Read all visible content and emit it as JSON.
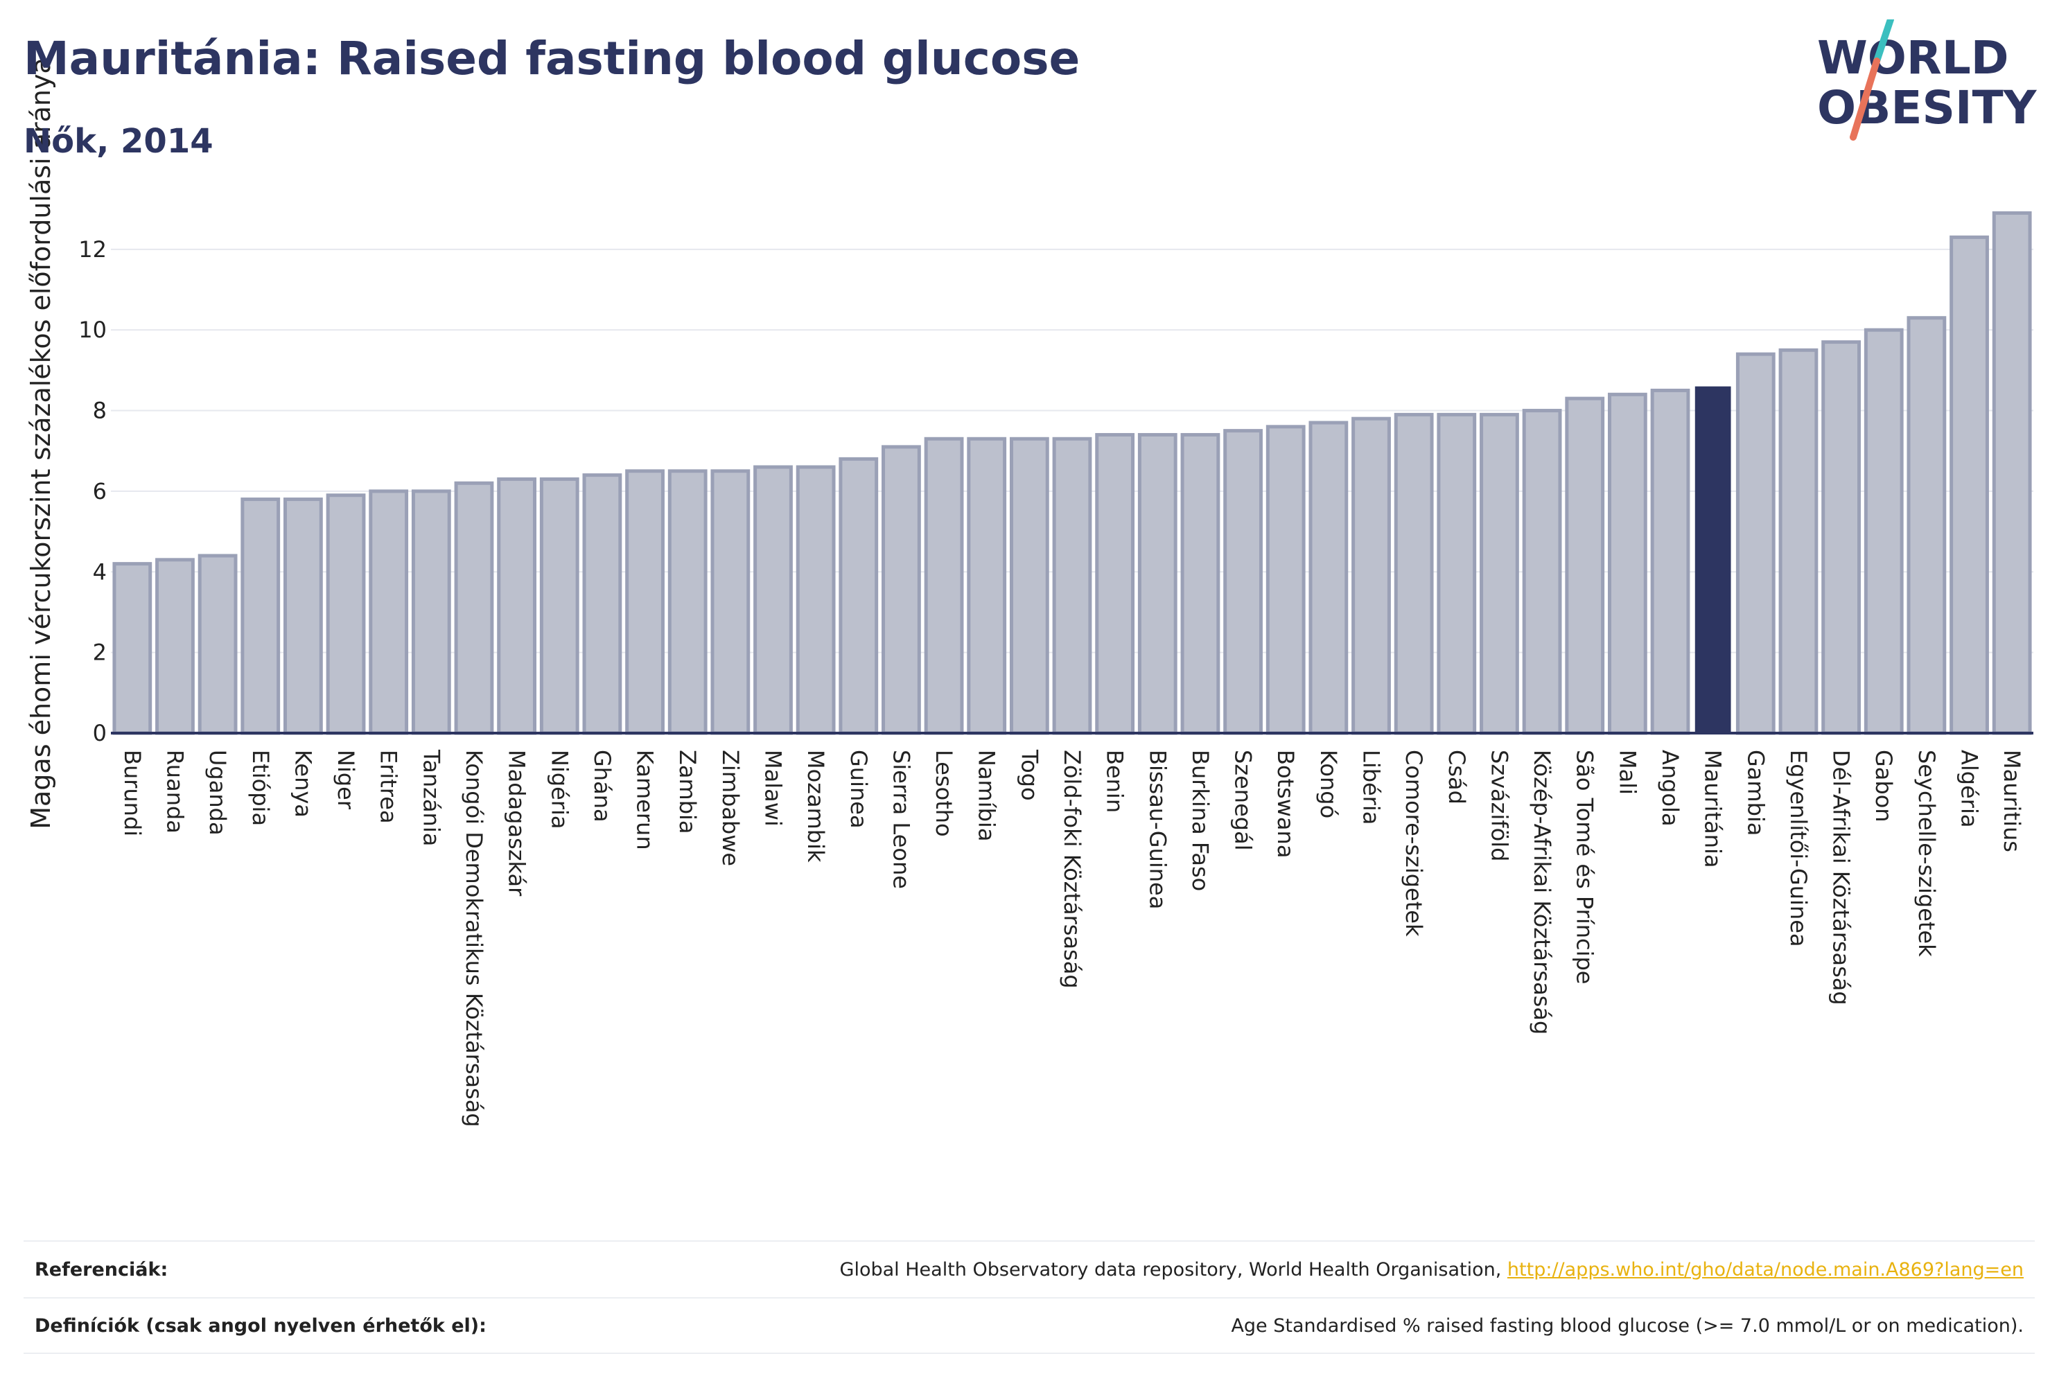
{
  "title": "Mauritánia: Raised fasting blood glucose",
  "subtitle": "Nők, 2014",
  "logo": {
    "line1": "WORLD",
    "line2": "OBESITY"
  },
  "colors": {
    "bar_fill": "#bcc0cd",
    "bar_stroke": "#9aa0b6",
    "highlight": "#2d3561",
    "grid": "#e6e8ee",
    "logo_teal": "#3bbfbf",
    "logo_coral": "#e8735a"
  },
  "chart_data": {
    "type": "bar",
    "ylabel": "Magas éhomi vércukorszint százalékos előfordulási aránya",
    "xlabel": "",
    "ylim": [
      0,
      13.2
    ],
    "yticks": [
      0,
      2,
      4,
      6,
      8,
      10,
      12
    ],
    "grid": true,
    "highlight": "Mauritánia",
    "categories": [
      "Burundi",
      "Ruanda",
      "Uganda",
      "Etiópia",
      "Kenya",
      "Niger",
      "Eritrea",
      "Tanzánia",
      "Kongói Demokratikus Köztársaság",
      "Madagaszkár",
      "Nigéria",
      "Ghána",
      "Kamerun",
      "Zambia",
      "Zimbabwe",
      "Malawi",
      "Mozambik",
      "Guinea",
      "Sierra Leone",
      "Lesotho",
      "Namíbia",
      "Togo",
      "Zöld-foki Köztársaság",
      "Benin",
      "Bissau-Guinea",
      "Burkina Faso",
      "Szenegál",
      "Botswana",
      "Kongó",
      "Libéria",
      "Comore-szigetek",
      "Csád",
      "Szváziföld",
      "Közép-Afrikai Köztársaság",
      "São Tomé és Príncipe",
      "Mali",
      "Angola",
      "Mauritánia",
      "Gambia",
      "Egyenlítői-Guinea",
      "Dél-Afrikai Köztársaság",
      "Gabon",
      "Seychelle-szigetek",
      "Algéria",
      "Mauritius"
    ],
    "values": [
      4.2,
      4.3,
      4.4,
      5.8,
      5.8,
      5.9,
      6.0,
      6.0,
      6.2,
      6.3,
      6.3,
      6.4,
      6.5,
      6.5,
      6.5,
      6.6,
      6.6,
      6.8,
      7.1,
      7.3,
      7.3,
      7.3,
      7.3,
      7.4,
      7.4,
      7.4,
      7.5,
      7.6,
      7.7,
      7.8,
      7.9,
      7.9,
      7.9,
      8.0,
      8.3,
      8.4,
      8.5,
      8.6,
      9.4,
      9.5,
      9.7,
      10.0,
      10.3,
      12.3,
      12.9
    ]
  },
  "footer": {
    "references_label": "Referenciák:",
    "references_text": "Global Health Observatory data repository, World Health Organisation, ",
    "references_link": "http://apps.who.int/gho/data/node.main.A869?lang=en",
    "definitions_label": "Definíciók (csak angol nyelven érhetők el):",
    "definitions_text": "Age Standardised % raised fasting blood glucose (>= 7.0 mmol/L or on medication)."
  }
}
